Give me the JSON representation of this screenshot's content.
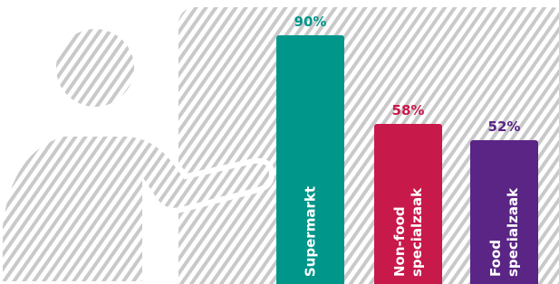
{
  "chart_data": {
    "type": "bar",
    "categories": [
      "Supermarkt",
      "Non-food specialzaak",
      "Food specialzaak"
    ],
    "values": [
      90,
      58,
      52
    ],
    "value_labels": [
      "90%",
      "58%",
      "52%"
    ],
    "colors": [
      "#00968a",
      "#c8194b",
      "#5a2585"
    ]
  }
}
